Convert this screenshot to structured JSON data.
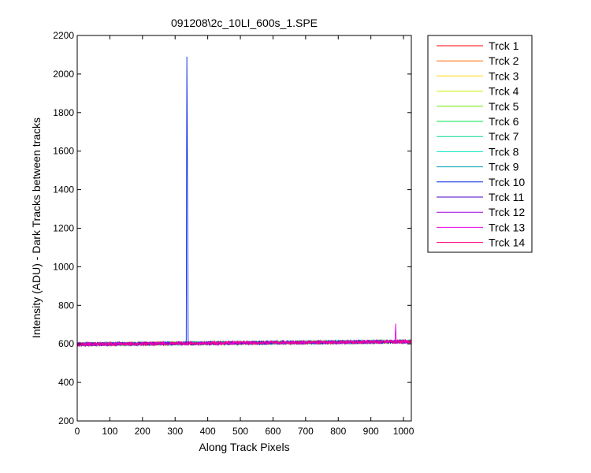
{
  "chart_data": {
    "type": "line",
    "title": "091208\\2c_10LI_600s_1.SPE",
    "xlabel": "Along Track Pixels",
    "ylabel": "Intensity (ADU) - Dark Tracks between tracks",
    "xlim": [
      0,
      1024
    ],
    "ylim": [
      200,
      2200
    ],
    "xticks": [
      0,
      100,
      200,
      300,
      400,
      500,
      600,
      700,
      800,
      900,
      1000
    ],
    "yticks": [
      200,
      400,
      600,
      800,
      1000,
      1200,
      1400,
      1600,
      1800,
      2000,
      2200
    ],
    "grid": false,
    "legend_position": "outside-top-right",
    "baseline": {
      "x_start": 0,
      "y_start": 598,
      "x_end": 1024,
      "y_end": 612,
      "noise": 18
    },
    "series": [
      {
        "name": "Trck 1",
        "color": "#ff0000",
        "spikes": []
      },
      {
        "name": "Trck 2",
        "color": "#ff6a00",
        "spikes": []
      },
      {
        "name": "Trck 3",
        "color": "#ffd400",
        "spikes": []
      },
      {
        "name": "Trck 4",
        "color": "#c8f000",
        "spikes": []
      },
      {
        "name": "Trck 5",
        "color": "#6ee600",
        "spikes": []
      },
      {
        "name": "Trck 6",
        "color": "#00e64a",
        "spikes": []
      },
      {
        "name": "Trck 7",
        "color": "#00d98c",
        "spikes": []
      },
      {
        "name": "Trck 8",
        "color": "#00e6c8",
        "spikes": []
      },
      {
        "name": "Trck 9",
        "color": "#00a0b4",
        "spikes": []
      },
      {
        "name": "Trck 10",
        "color": "#0022e6",
        "spikes": [
          {
            "x": 336,
            "y": 2090
          },
          {
            "x": 338,
            "y": 1380
          }
        ]
      },
      {
        "name": "Trck 11",
        "color": "#4800c8",
        "spikes": []
      },
      {
        "name": "Trck 12",
        "color": "#a000dc",
        "spikes": []
      },
      {
        "name": "Trck 13",
        "color": "#e600e6",
        "spikes": [
          {
            "x": 975,
            "y": 705
          }
        ]
      },
      {
        "name": "Trck 14",
        "color": "#ff0080",
        "spikes": []
      }
    ]
  }
}
